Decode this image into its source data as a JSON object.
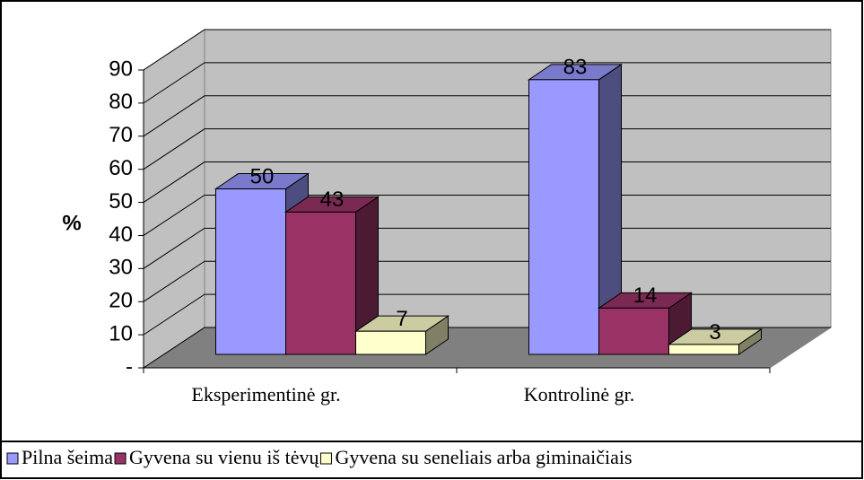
{
  "chart_data": {
    "type": "bar3d",
    "y_axis_label": "%",
    "categories": [
      "Eksperimentinė gr.",
      "Kontrolinė gr."
    ],
    "series": [
      {
        "name": "Pilna šeima",
        "color": "#9999ff",
        "values": [
          50,
          83
        ]
      },
      {
        "name": "Gyvena su vienu iš tėvų",
        "color": "#993366",
        "values": [
          43,
          14
        ]
      },
      {
        "name": "Gyvena su seneliais arba giminaičiais",
        "color": "#ffffcc",
        "values": [
          7,
          3
        ]
      }
    ],
    "ylim": [
      0,
      90
    ],
    "yticks": [
      {
        "value": 0,
        "label": "-"
      },
      10,
      20,
      30,
      40,
      50,
      60,
      70,
      80,
      90
    ],
    "grid": true,
    "legend": "bottom"
  }
}
